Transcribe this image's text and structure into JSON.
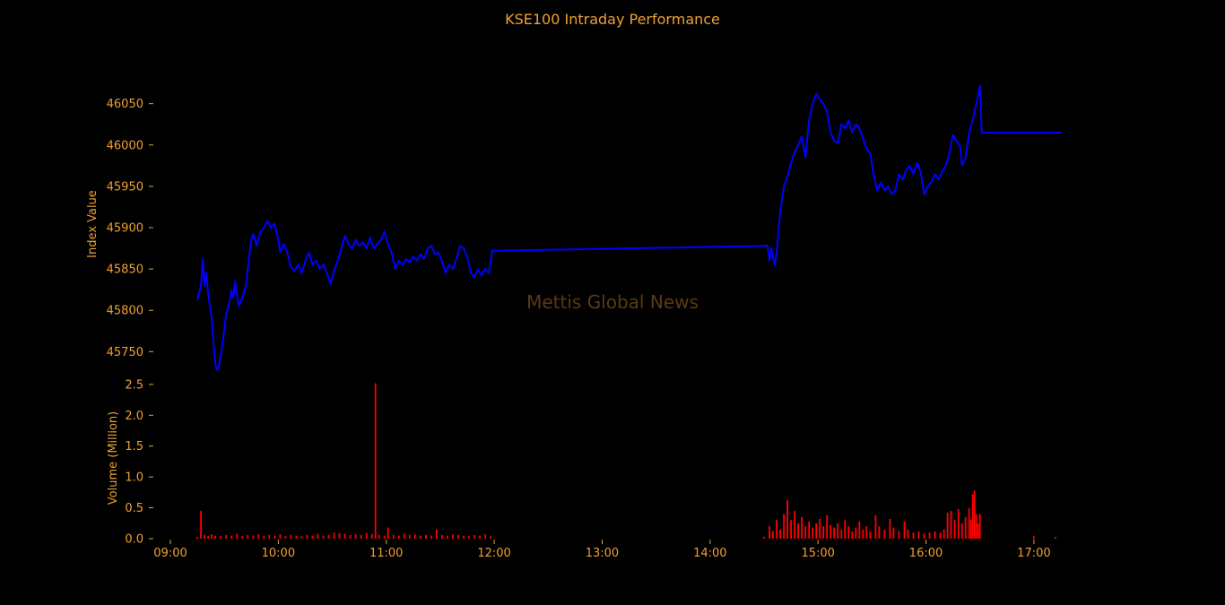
{
  "chart_data": {
    "type": "line",
    "title": "KSE100 Intraday Performance",
    "watermark": "Mettis Global News",
    "background": "#000000",
    "text_color": "#f0a030",
    "grid": false,
    "legend": "none",
    "x_axis": {
      "range": [
        "09:00",
        "17:15"
      ],
      "ticks": [
        "09:00",
        "10:00",
        "11:00",
        "12:00",
        "13:00",
        "14:00",
        "15:00",
        "16:00",
        "17:00"
      ]
    },
    "index_panel": {
      "ylabel": "Index Value",
      "ylim": [
        45720,
        46080
      ],
      "yticks": [
        45750,
        45800,
        45850,
        45900,
        45950,
        46000,
        46050
      ],
      "line_color": "#0000ff",
      "points": [
        [
          "09:15",
          45812
        ],
        [
          "09:17",
          45830
        ],
        [
          "09:18",
          45862
        ],
        [
          "09:19",
          45830
        ],
        [
          "09:20",
          45845
        ],
        [
          "09:21",
          45820
        ],
        [
          "09:23",
          45790
        ],
        [
          "09:24",
          45760
        ],
        [
          "09:25",
          45735
        ],
        [
          "09:26",
          45728
        ],
        [
          "09:27",
          45732
        ],
        [
          "09:29",
          45760
        ],
        [
          "09:31",
          45795
        ],
        [
          "09:33",
          45812
        ],
        [
          "09:34",
          45825
        ],
        [
          "09:35",
          45815
        ],
        [
          "09:36",
          45835
        ],
        [
          "09:37",
          45820
        ],
        [
          "09:38",
          45805
        ],
        [
          "09:40",
          45815
        ],
        [
          "09:42",
          45830
        ],
        [
          "09:43",
          45850
        ],
        [
          "09:44",
          45870
        ],
        [
          "09:45",
          45885
        ],
        [
          "09:46",
          45892
        ],
        [
          "09:48",
          45878
        ],
        [
          "09:50",
          45895
        ],
        [
          "09:52",
          45900
        ],
        [
          "09:54",
          45908
        ],
        [
          "09:56",
          45900
        ],
        [
          "09:58",
          45905
        ],
        [
          "10:00",
          45885
        ],
        [
          "10:01",
          45870
        ],
        [
          "10:03",
          45880
        ],
        [
          "10:05",
          45870
        ],
        [
          "10:07",
          45852
        ],
        [
          "10:09",
          45848
        ],
        [
          "10:11",
          45855
        ],
        [
          "10:13",
          45845
        ],
        [
          "10:15",
          45860
        ],
        [
          "10:17",
          45870
        ],
        [
          "10:19",
          45855
        ],
        [
          "10:21",
          45860
        ],
        [
          "10:23",
          45850
        ],
        [
          "10:25",
          45855
        ],
        [
          "10:27",
          45845
        ],
        [
          "10:29",
          45832
        ],
        [
          "10:31",
          45848
        ],
        [
          "10:33",
          45860
        ],
        [
          "10:35",
          45875
        ],
        [
          "10:37",
          45890
        ],
        [
          "10:39",
          45880
        ],
        [
          "10:41",
          45875
        ],
        [
          "10:43",
          45885
        ],
        [
          "10:45",
          45878
        ],
        [
          "10:47",
          45882
        ],
        [
          "10:49",
          45875
        ],
        [
          "10:51",
          45888
        ],
        [
          "10:53",
          45875
        ],
        [
          "10:55",
          45880
        ],
        [
          "10:57",
          45885
        ],
        [
          "10:59",
          45895
        ],
        [
          "11:01",
          45880
        ],
        [
          "11:03",
          45870
        ],
        [
          "11:05",
          45850
        ],
        [
          "11:07",
          45860
        ],
        [
          "11:09",
          45855
        ],
        [
          "11:11",
          45862
        ],
        [
          "11:13",
          45858
        ],
        [
          "11:15",
          45865
        ],
        [
          "11:17",
          45860
        ],
        [
          "11:19",
          45868
        ],
        [
          "11:21",
          45862
        ],
        [
          "11:23",
          45875
        ],
        [
          "11:25",
          45878
        ],
        [
          "11:27",
          45868
        ],
        [
          "11:29",
          45870
        ],
        [
          "11:31",
          45860
        ],
        [
          "11:33",
          45845
        ],
        [
          "11:35",
          45855
        ],
        [
          "11:37",
          45850
        ],
        [
          "11:39",
          45862
        ],
        [
          "11:41",
          45878
        ],
        [
          "11:43",
          45875
        ],
        [
          "11:45",
          45865
        ],
        [
          "11:47",
          45845
        ],
        [
          "11:49",
          45840
        ],
        [
          "11:51",
          45850
        ],
        [
          "11:53",
          45842
        ],
        [
          "11:55",
          45850
        ],
        [
          "11:57",
          45845
        ],
        [
          "11:59",
          45872
        ],
        [
          "14:32",
          45878
        ],
        [
          "14:33",
          45860
        ],
        [
          "14:34",
          45875
        ],
        [
          "14:35",
          45865
        ],
        [
          "14:36",
          45855
        ],
        [
          "14:37",
          45870
        ],
        [
          "14:38",
          45895
        ],
        [
          "14:39",
          45920
        ],
        [
          "14:40",
          45935
        ],
        [
          "14:41",
          45950
        ],
        [
          "14:43",
          45962
        ],
        [
          "14:45",
          45978
        ],
        [
          "14:47",
          45992
        ],
        [
          "14:49",
          46000
        ],
        [
          "14:51",
          46010
        ],
        [
          "14:53",
          45985
        ],
        [
          "14:55",
          46030
        ],
        [
          "14:57",
          46050
        ],
        [
          "14:59",
          46062
        ],
        [
          "15:01",
          46055
        ],
        [
          "15:03",
          46050
        ],
        [
          "15:05",
          46040
        ],
        [
          "15:07",
          46015
        ],
        [
          "15:09",
          46005
        ],
        [
          "15:11",
          46002
        ],
        [
          "15:13",
          46025
        ],
        [
          "15:15",
          46020
        ],
        [
          "15:17",
          46030
        ],
        [
          "15:19",
          46015
        ],
        [
          "15:21",
          46025
        ],
        [
          "15:23",
          46020
        ],
        [
          "15:25",
          46008
        ],
        [
          "15:27",
          45995
        ],
        [
          "15:29",
          45990
        ],
        [
          "15:31",
          45962
        ],
        [
          "15:33",
          45945
        ],
        [
          "15:35",
          45955
        ],
        [
          "15:37",
          45945
        ],
        [
          "15:39",
          45950
        ],
        [
          "15:41",
          45940
        ],
        [
          "15:43",
          45945
        ],
        [
          "15:45",
          45965
        ],
        [
          "15:47",
          45958
        ],
        [
          "15:49",
          45970
        ],
        [
          "15:51",
          45975
        ],
        [
          "15:53",
          45965
        ],
        [
          "15:55",
          45978
        ],
        [
          "15:57",
          45968
        ],
        [
          "15:59",
          45940
        ],
        [
          "16:01",
          45950
        ],
        [
          "16:03",
          45955
        ],
        [
          "16:05",
          45965
        ],
        [
          "16:07",
          45958
        ],
        [
          "16:09",
          45968
        ],
        [
          "16:11",
          45975
        ],
        [
          "16:13",
          45990
        ],
        [
          "16:15",
          46012
        ],
        [
          "16:17",
          46005
        ],
        [
          "16:19",
          45998
        ],
        [
          "16:20",
          45975
        ],
        [
          "16:22",
          45985
        ],
        [
          "16:24",
          46015
        ],
        [
          "16:26",
          46030
        ],
        [
          "16:28",
          46050
        ],
        [
          "16:29",
          46060
        ],
        [
          "16:30",
          46072
        ],
        [
          "16:31",
          46015
        ],
        [
          "17:15",
          46015
        ]
      ]
    },
    "volume_panel": {
      "ylabel": "Volume (Million)",
      "ylim": [
        0,
        2.6
      ],
      "yticks": [
        0.0,
        0.5,
        1.0,
        1.5,
        2.0,
        2.5
      ],
      "yticklabels": [
        "0.0",
        "0.5",
        "1.0",
        "1.5",
        "2.0",
        "2.5"
      ],
      "bar_color": "#ff0000",
      "bars": [
        [
          "09:15",
          0.03
        ],
        [
          "09:17",
          0.45
        ],
        [
          "09:19",
          0.06
        ],
        [
          "09:21",
          0.04
        ],
        [
          "09:23",
          0.07
        ],
        [
          "09:25",
          0.05
        ],
        [
          "09:28",
          0.04
        ],
        [
          "09:31",
          0.06
        ],
        [
          "09:34",
          0.05
        ],
        [
          "09:37",
          0.08
        ],
        [
          "09:40",
          0.04
        ],
        [
          "09:43",
          0.06
        ],
        [
          "09:46",
          0.05
        ],
        [
          "09:49",
          0.07
        ],
        [
          "09:52",
          0.04
        ],
        [
          "09:55",
          0.06
        ],
        [
          "09:58",
          0.05
        ],
        [
          "10:01",
          0.07
        ],
        [
          "10:04",
          0.04
        ],
        [
          "10:07",
          0.06
        ],
        [
          "10:10",
          0.05
        ],
        [
          "10:13",
          0.04
        ],
        [
          "10:16",
          0.06
        ],
        [
          "10:19",
          0.05
        ],
        [
          "10:22",
          0.08
        ],
        [
          "10:25",
          0.05
        ],
        [
          "10:28",
          0.06
        ],
        [
          "10:31",
          0.1
        ],
        [
          "10:34",
          0.09
        ],
        [
          "10:37",
          0.08
        ],
        [
          "10:40",
          0.06
        ],
        [
          "10:43",
          0.07
        ],
        [
          "10:46",
          0.06
        ],
        [
          "10:49",
          0.09
        ],
        [
          "10:52",
          0.08
        ],
        [
          "10:54",
          2.52
        ],
        [
          "10:56",
          0.06
        ],
        [
          "10:59",
          0.05
        ],
        [
          "11:01",
          0.18
        ],
        [
          "11:04",
          0.06
        ],
        [
          "11:07",
          0.05
        ],
        [
          "11:10",
          0.08
        ],
        [
          "11:13",
          0.06
        ],
        [
          "11:16",
          0.07
        ],
        [
          "11:19",
          0.05
        ],
        [
          "11:22",
          0.06
        ],
        [
          "11:25",
          0.05
        ],
        [
          "11:28",
          0.15
        ],
        [
          "11:31",
          0.06
        ],
        [
          "11:34",
          0.05
        ],
        [
          "11:37",
          0.07
        ],
        [
          "11:40",
          0.06
        ],
        [
          "11:43",
          0.05
        ],
        [
          "11:46",
          0.04
        ],
        [
          "11:49",
          0.06
        ],
        [
          "11:52",
          0.05
        ],
        [
          "11:55",
          0.07
        ],
        [
          "11:58",
          0.04
        ],
        [
          "14:30",
          0.03
        ],
        [
          "14:33",
          0.2
        ],
        [
          "14:35",
          0.12
        ],
        [
          "14:37",
          0.3
        ],
        [
          "14:39",
          0.15
        ],
        [
          "14:41",
          0.4
        ],
        [
          "14:43",
          0.63
        ],
        [
          "14:45",
          0.3
        ],
        [
          "14:47",
          0.45
        ],
        [
          "14:49",
          0.25
        ],
        [
          "14:51",
          0.35
        ],
        [
          "14:53",
          0.2
        ],
        [
          "14:55",
          0.28
        ],
        [
          "14:57",
          0.18
        ],
        [
          "14:59",
          0.25
        ],
        [
          "15:01",
          0.32
        ],
        [
          "15:03",
          0.2
        ],
        [
          "15:05",
          0.38
        ],
        [
          "15:07",
          0.22
        ],
        [
          "15:09",
          0.18
        ],
        [
          "15:11",
          0.25
        ],
        [
          "15:13",
          0.15
        ],
        [
          "15:15",
          0.3
        ],
        [
          "15:17",
          0.2
        ],
        [
          "15:19",
          0.12
        ],
        [
          "15:21",
          0.18
        ],
        [
          "15:23",
          0.28
        ],
        [
          "15:25",
          0.15
        ],
        [
          "15:27",
          0.2
        ],
        [
          "15:29",
          0.12
        ],
        [
          "15:32",
          0.38
        ],
        [
          "15:34",
          0.2
        ],
        [
          "15:37",
          0.15
        ],
        [
          "15:40",
          0.32
        ],
        [
          "15:42",
          0.18
        ],
        [
          "15:45",
          0.12
        ],
        [
          "15:48",
          0.28
        ],
        [
          "15:50",
          0.15
        ],
        [
          "15:53",
          0.1
        ],
        [
          "15:56",
          0.12
        ],
        [
          "15:59",
          0.08
        ],
        [
          "16:02",
          0.1
        ],
        [
          "16:05",
          0.12
        ],
        [
          "16:08",
          0.1
        ],
        [
          "16:10",
          0.15
        ],
        [
          "16:12",
          0.42
        ],
        [
          "16:14",
          0.45
        ],
        [
          "16:16",
          0.3
        ],
        [
          "16:18",
          0.48
        ],
        [
          "16:20",
          0.25
        ],
        [
          "16:22",
          0.35
        ],
        [
          "16:24",
          0.5
        ],
        [
          "16:25",
          0.3
        ],
        [
          "16:26",
          0.72
        ],
        [
          "16:27",
          0.78
        ],
        [
          "16:28",
          0.4
        ],
        [
          "16:29",
          0.25
        ],
        [
          "16:30",
          0.4
        ],
        [
          "17:00",
          0.04
        ],
        [
          "17:12",
          0.03
        ]
      ]
    }
  }
}
